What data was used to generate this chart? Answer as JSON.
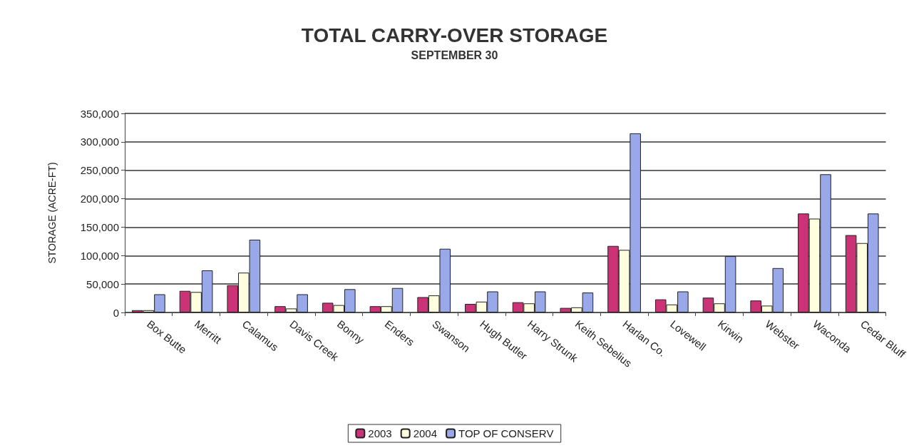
{
  "chart_data": {
    "type": "bar",
    "title": "TOTAL CARRY-OVER STORAGE",
    "subtitle": "SEPTEMBER 30",
    "ylabel": "STORAGE (ACRE-FT)",
    "categories": [
      "Box Butte",
      "Merritt",
      "Calamus",
      "Davis Creek",
      "Bonny",
      "Enders",
      "Swanson",
      "Hugh Butler",
      "Harry Strunk",
      "Keith Sebelius",
      "Harlan Co.",
      "Lovewell",
      "Kirwin",
      "Webster",
      "Waconda",
      "Cedar Bluff"
    ],
    "series": [
      {
        "name": "2003",
        "color": "#cc3377",
        "values": [
          4000,
          38000,
          48000,
          11000,
          17000,
          11000,
          27000,
          15000,
          18000,
          8000,
          117000,
          23000,
          26000,
          21000,
          174000,
          136000
        ]
      },
      {
        "name": "2004",
        "color": "#ffffe0",
        "values": [
          4000,
          36000,
          70000,
          7000,
          13000,
          11000,
          30000,
          19000,
          16000,
          9000,
          110000,
          14000,
          16000,
          12000,
          165000,
          122000
        ]
      },
      {
        "name": "TOP OF CONSERV",
        "color": "#99a8e8",
        "values": [
          32000,
          74000,
          128000,
          32000,
          41000,
          43000,
          112000,
          37000,
          37000,
          35000,
          315000,
          37000,
          99000,
          78000,
          243000,
          174000
        ]
      }
    ],
    "ylim": [
      0,
      350000
    ],
    "yticks": [
      {
        "value": 0,
        "label": "0"
      },
      {
        "value": 50000,
        "label": "50,000"
      },
      {
        "value": 100000,
        "label": "100,000"
      },
      {
        "value": 150000,
        "label": "150,000"
      },
      {
        "value": 200000,
        "label": "200,000"
      },
      {
        "value": 250000,
        "label": "250,000"
      },
      {
        "value": 300000,
        "label": "300,000"
      },
      {
        "value": 350000,
        "label": "350,000"
      }
    ],
    "grid": "y",
    "legend": "bottom"
  }
}
